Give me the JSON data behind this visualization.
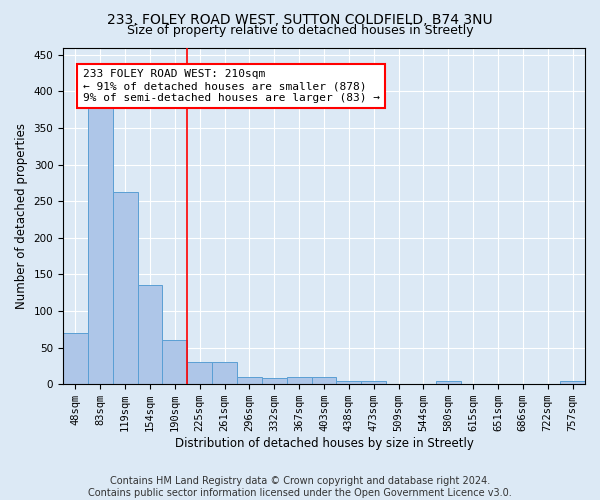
{
  "title_line1": "233, FOLEY ROAD WEST, SUTTON COLDFIELD, B74 3NU",
  "title_line2": "Size of property relative to detached houses in Streetly",
  "xlabel": "Distribution of detached houses by size in Streetly",
  "ylabel": "Number of detached properties",
  "categories": [
    "48sqm",
    "83sqm",
    "119sqm",
    "154sqm",
    "190sqm",
    "225sqm",
    "261sqm",
    "296sqm",
    "332sqm",
    "367sqm",
    "403sqm",
    "438sqm",
    "473sqm",
    "509sqm",
    "544sqm",
    "580sqm",
    "615sqm",
    "651sqm",
    "686sqm",
    "722sqm",
    "757sqm"
  ],
  "values": [
    70,
    378,
    262,
    135,
    60,
    30,
    30,
    10,
    8,
    10,
    10,
    5,
    5,
    0,
    0,
    5,
    0,
    0,
    0,
    0,
    4
  ],
  "bar_color": "#aec6e8",
  "bar_edge_color": "#5a9fd4",
  "vline_x": 4.5,
  "vline_color": "red",
  "annotation_text": "233 FOLEY ROAD WEST: 210sqm\n← 91% of detached houses are smaller (878)\n9% of semi-detached houses are larger (83) →",
  "annotation_box_color": "white",
  "annotation_box_edge_color": "red",
  "ylim": [
    0,
    460
  ],
  "yticks": [
    0,
    50,
    100,
    150,
    200,
    250,
    300,
    350,
    400,
    450
  ],
  "background_color": "#dce9f5",
  "plot_bg_color": "#dce9f5",
  "grid_color": "white",
  "footer_line1": "Contains HM Land Registry data © Crown copyright and database right 2024.",
  "footer_line2": "Contains public sector information licensed under the Open Government Licence v3.0.",
  "title_fontsize": 10,
  "subtitle_fontsize": 9,
  "axis_label_fontsize": 8.5,
  "tick_fontsize": 7.5,
  "annotation_fontsize": 8,
  "footer_fontsize": 7
}
